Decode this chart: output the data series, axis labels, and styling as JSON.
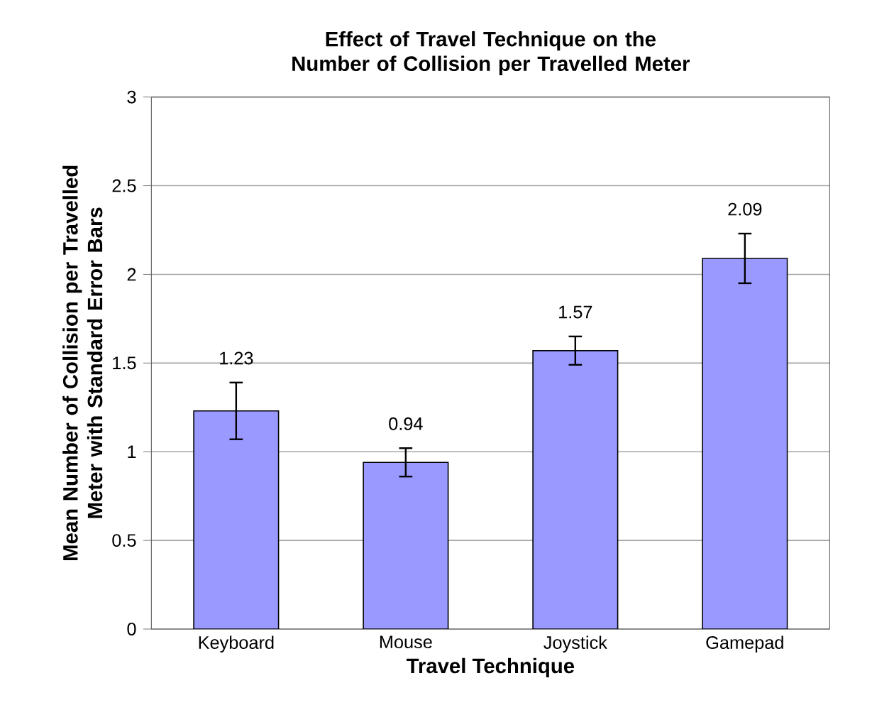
{
  "chart_data": {
    "type": "bar",
    "title": "Effect of Travel Technique on the Number of Collision per Travelled Meter",
    "xlabel": "Travel Technique",
    "ylabel": "Mean Number of Collision per Travelled Meter with Standard Error Bars",
    "categories": [
      "Keyboard",
      "Mouse",
      "Joystick",
      "Gamepad"
    ],
    "values": [
      1.23,
      0.94,
      1.57,
      2.09
    ],
    "errors": [
      0.16,
      0.08,
      0.08,
      0.14
    ],
    "color": "#9999ff",
    "data_labels": true,
    "grid": "y",
    "ylim": [
      0,
      3
    ],
    "yticks": [
      0,
      0.5,
      1,
      1.5,
      2,
      2.5,
      3
    ]
  }
}
